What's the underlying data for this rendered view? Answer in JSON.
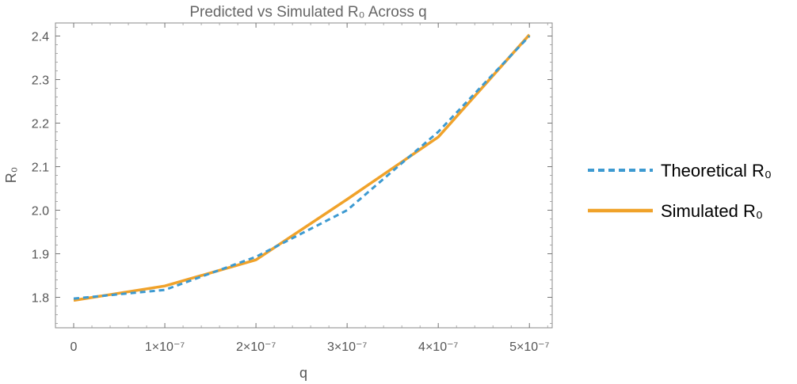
{
  "chart_data": {
    "type": "line",
    "title": "Predicted vs Simulated R₀ Across q",
    "xlabel": "q",
    "ylabel": "R₀",
    "xlim": [
      -2e-08,
      5.25e-07
    ],
    "ylim": [
      1.73,
      2.43
    ],
    "x_ticks": [
      {
        "value": 0,
        "label": "0"
      },
      {
        "value": 1e-07,
        "label": "1×10⁻⁷"
      },
      {
        "value": 2e-07,
        "label": "2×10⁻⁷"
      },
      {
        "value": 3e-07,
        "label": "3×10⁻⁷"
      },
      {
        "value": 4e-07,
        "label": "4×10⁻⁷"
      },
      {
        "value": 5e-07,
        "label": "5×10⁻⁷"
      }
    ],
    "y_ticks": [
      {
        "value": 1.8,
        "label": "1.8"
      },
      {
        "value": 1.9,
        "label": "1.9"
      },
      {
        "value": 2.0,
        "label": "2.0"
      },
      {
        "value": 2.1,
        "label": "2.1"
      },
      {
        "value": 2.2,
        "label": "2.2"
      },
      {
        "value": 2.3,
        "label": "2.3"
      },
      {
        "value": 2.4,
        "label": "2.4"
      }
    ],
    "x": [
      0,
      1e-07,
      2e-07,
      3e-07,
      4e-07,
      5e-07
    ],
    "series": [
      {
        "name": "Theoretical R₀",
        "style": "dashed",
        "color": "#3d9ad1",
        "values": [
          1.797,
          1.817,
          1.893,
          2.0,
          2.18,
          2.4
        ]
      },
      {
        "name": "Simulated R₀",
        "style": "solid",
        "color": "#f0a22a",
        "values": [
          1.793,
          1.826,
          1.886,
          2.025,
          2.168,
          2.403
        ]
      }
    ],
    "grid": false,
    "legend_position": "right"
  }
}
